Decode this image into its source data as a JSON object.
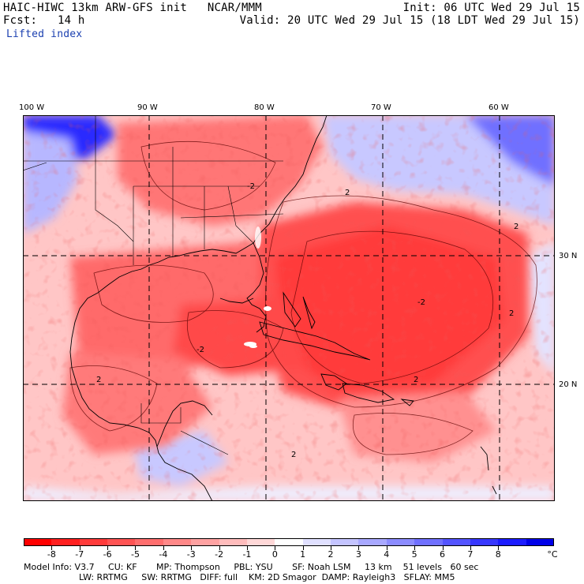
{
  "header": {
    "model_title": "HAIC-HIWC 13km ARW-GFS init   NCAR/MMM",
    "forecast": "Fcst:   14 h",
    "field": "Lifted index",
    "init": "Init: 06 UTC Wed 29 Jul 15",
    "valid": "Valid: 20 UTC Wed 29 Jul 15 (18 LDT Wed 29 Jul 15)"
  },
  "map": {
    "longitude_labels": [
      "100 W",
      "90 W",
      "80 W",
      "70 W",
      "60 W"
    ],
    "latitude_labels": [
      "30 N",
      "20 N"
    ],
    "contour_labels": [
      "2",
      "2",
      "2",
      "2",
      "2",
      "2",
      "-2",
      "-2",
      "-2"
    ]
  },
  "colorbar": {
    "labels": [
      "-8",
      "-7",
      "-6",
      "-5",
      "-4",
      "-3",
      "-2",
      "-1",
      "0",
      "1",
      "2",
      "3",
      "4",
      "5",
      "6",
      "7",
      "8"
    ],
    "unit": "°C",
    "colors": [
      "#ff0000",
      "#ff2020",
      "#ff3b3b",
      "#ff5454",
      "#ff6e6e",
      "#ff8888",
      "#ffa2a2",
      "#ffbcbc",
      "#ffd8d8",
      "#ffffff",
      "#e0e0ff",
      "#c4c4ff",
      "#a8a8ff",
      "#8c8cff",
      "#7070ff",
      "#5454ff",
      "#3838ff",
      "#1c1cff",
      "#0000e8"
    ]
  },
  "footer": {
    "line1": "Model Info: V3.7     CU: KF       MP: Thompson     PBL: YSU       SF: Noah LSM     13 km    51 levels   60 sec",
    "line2": "LW: RRTMG     SW: RRTMG   DIFF: full    KM: 2D Smagor  DAMP: Rayleigh3   SFLAY: MM5"
  }
}
